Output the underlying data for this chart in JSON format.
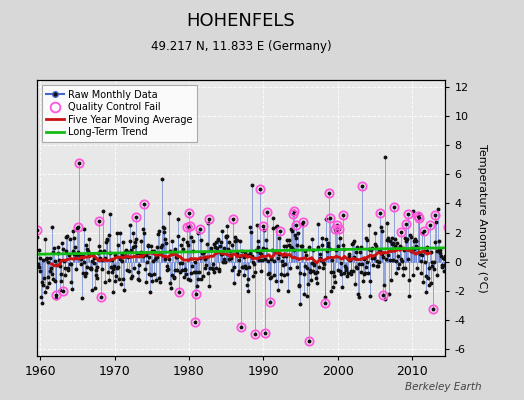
{
  "title": "HOHENFELS",
  "subtitle": "49.217 N, 11.833 E (Germany)",
  "ylabel": "Temperature Anomaly (°C)",
  "watermark": "Berkeley Earth",
  "start_year": 1959.5,
  "end_year": 2014.5,
  "ylim": [
    -6.5,
    12.5
  ],
  "yticks": [
    -6,
    -4,
    -2,
    0,
    2,
    4,
    6,
    8,
    10,
    12
  ],
  "xticks": [
    1960,
    1970,
    1980,
    1990,
    2000,
    2010
  ],
  "bg_color": "#d8d8d8",
  "plot_bg_color": "#e8e8e8",
  "line_color": "#4466cc",
  "dot_color": "#111111",
  "moving_avg_color": "#cc1111",
  "trend_color": "#11bb11",
  "qc_fail_color": "#ff55dd",
  "trend_slope": 0.008,
  "trend_intercept": 0.5
}
